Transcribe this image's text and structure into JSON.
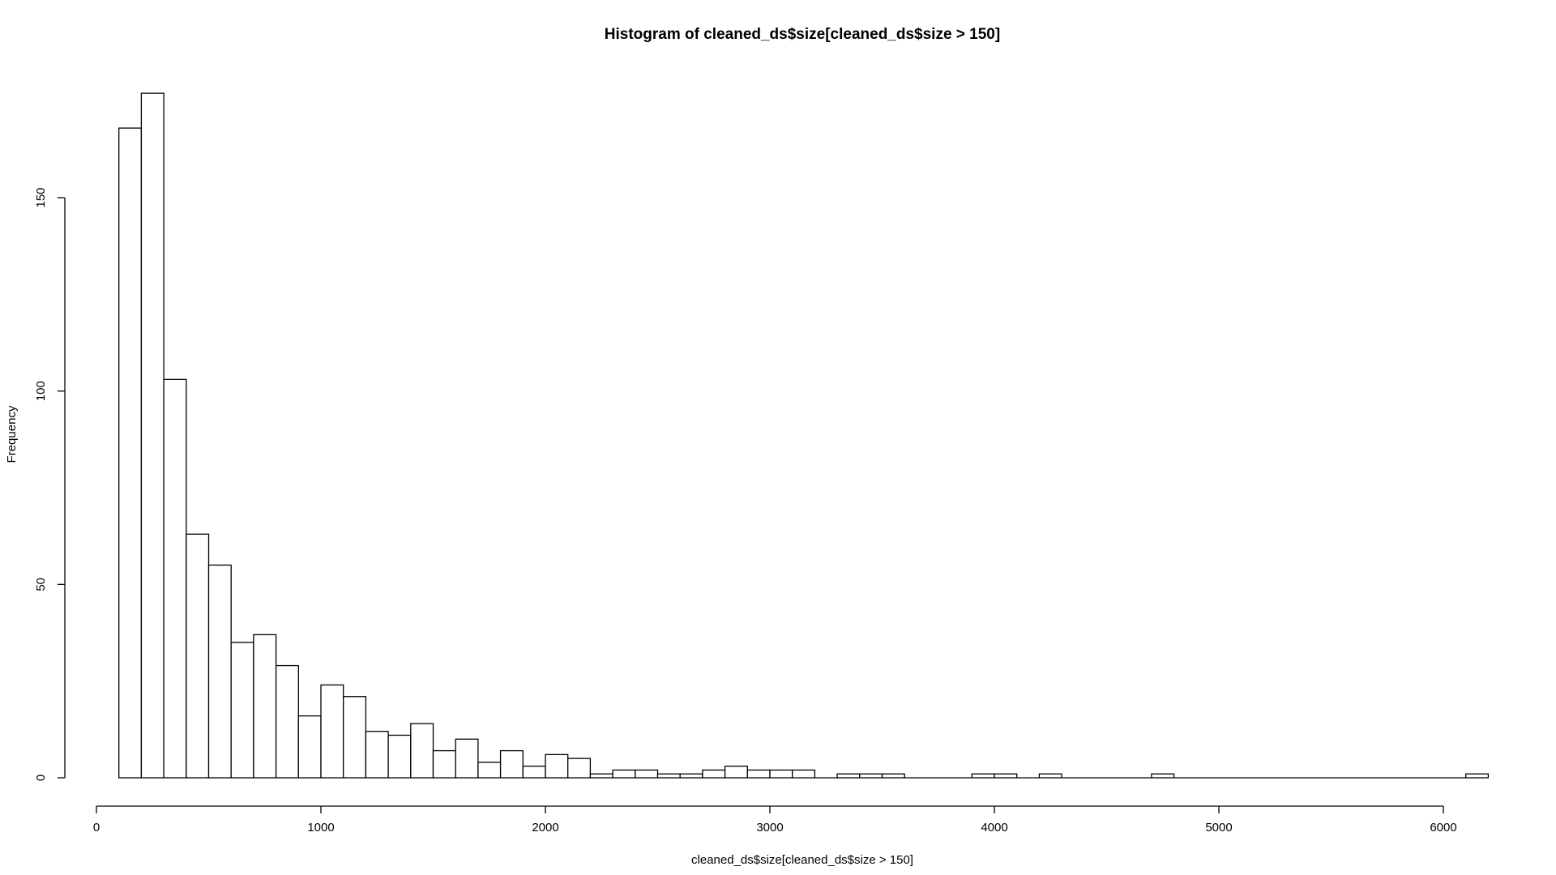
{
  "chart_data": {
    "type": "bar",
    "histogram": true,
    "title": "Histogram of cleaned_ds$size[cleaned_ds$size > 150]",
    "xlabel": "cleaned_ds$size[cleaned_ds$size > 150]",
    "ylabel": "Frequency",
    "xlim": [
      0,
      6200
    ],
    "ylim": [
      0,
      180
    ],
    "grid": false,
    "legend": "none",
    "bin_width": 100,
    "x_ticks": [
      0,
      1000,
      2000,
      3000,
      4000,
      5000,
      6000
    ],
    "x_tick_labels": [
      "0",
      "1000",
      "2000",
      "3000",
      "4000",
      "5000",
      "6000"
    ],
    "y_ticks": [
      0,
      50,
      100,
      150
    ],
    "y_tick_labels": [
      "0",
      "50",
      "100",
      "150"
    ],
    "bin_starts": [
      100,
      200,
      300,
      400,
      500,
      600,
      700,
      800,
      900,
      1000,
      1100,
      1200,
      1300,
      1400,
      1500,
      1600,
      1700,
      1800,
      1900,
      2000,
      2100,
      2200,
      2300,
      2400,
      2500,
      2600,
      2700,
      2800,
      2900,
      3000,
      3100,
      3200,
      3300,
      3400,
      3500,
      3600,
      3700,
      3800,
      3900,
      4000,
      4100,
      4200,
      4300,
      4400,
      4500,
      4600,
      4700,
      4800,
      4900,
      5000,
      5100,
      5200,
      5300,
      5400,
      5500,
      5600,
      5700,
      5800,
      5900,
      6000,
      6100
    ],
    "values": [
      168,
      177,
      103,
      63,
      55,
      35,
      37,
      29,
      16,
      24,
      21,
      12,
      11,
      14,
      7,
      10,
      4,
      7,
      3,
      6,
      5,
      1,
      2,
      2,
      1,
      1,
      2,
      3,
      2,
      2,
      2,
      0,
      1,
      1,
      1,
      0,
      0,
      0,
      1,
      1,
      0,
      1,
      0,
      0,
      0,
      0,
      1,
      0,
      0,
      0,
      0,
      0,
      0,
      0,
      0,
      0,
      0,
      0,
      0,
      0,
      1
    ],
    "colors": {
      "bar_fill": "#ffffff",
      "bar_stroke": "#000000",
      "text": "#000000"
    }
  }
}
